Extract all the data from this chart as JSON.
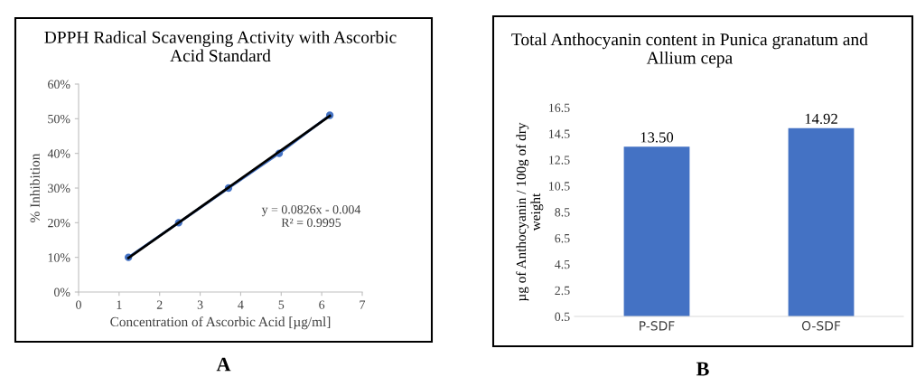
{
  "chart_data": [
    {
      "type": "scatter",
      "title": "DPPH Radical Scavenging Activity with Ascorbic Acid Standard",
      "xlabel": "Concentration of Ascorbic Acid [µg/ml]",
      "ylabel": "% Inhibition",
      "series": [
        {
          "type": "line",
          "color": "#4472c4",
          "marker": "circle",
          "x": [
            1.23,
            2.47,
            3.7,
            4.95,
            6.2
          ],
          "values": [
            0.1,
            0.2,
            0.3,
            0.4,
            0.51
          ]
        },
        {
          "type": "line",
          "color": "#000000",
          "marker": "none",
          "x": [
            1.23,
            6.2
          ],
          "values": [
            0.098,
            0.508
          ]
        }
      ],
      "xlim": [
        0,
        7
      ],
      "xticks": [
        0,
        1,
        2,
        3,
        4,
        5,
        6,
        7
      ],
      "ylim": [
        0,
        0.6
      ],
      "yticks": [
        {
          "value": 0,
          "label": "0%"
        },
        {
          "value": 0.1,
          "label": "10%"
        },
        {
          "value": 0.2,
          "label": "20%"
        },
        {
          "value": 0.3,
          "label": "30%"
        },
        {
          "value": 0.4,
          "label": "40%"
        },
        {
          "value": 0.5,
          "label": "50%"
        },
        {
          "value": 0.6,
          "label": "60%"
        }
      ],
      "grid": false,
      "legend": false,
      "annotations": [
        "y = 0.0826x - 0.004\nR² = 0.9995",
        "A"
      ]
    },
    {
      "type": "bar",
      "title": "Total Anthocyanin content in Punica granatum and Allium cepa",
      "ylabel": "µg of Anthocyanin / 100g of dry weight",
      "categories": [
        "P-SDF",
        "O-SDF"
      ],
      "values": [
        13.5,
        14.92
      ],
      "value_labels": [
        "13.50",
        "14.92"
      ],
      "color": "#4472c4",
      "ylim": [
        0.5,
        16.5
      ],
      "yticks": [
        0.5,
        2.5,
        4.5,
        6.5,
        8.5,
        10.5,
        12.5,
        14.5,
        16.5
      ],
      "grid": false,
      "legend": false,
      "annotations": [
        "B"
      ]
    }
  ]
}
